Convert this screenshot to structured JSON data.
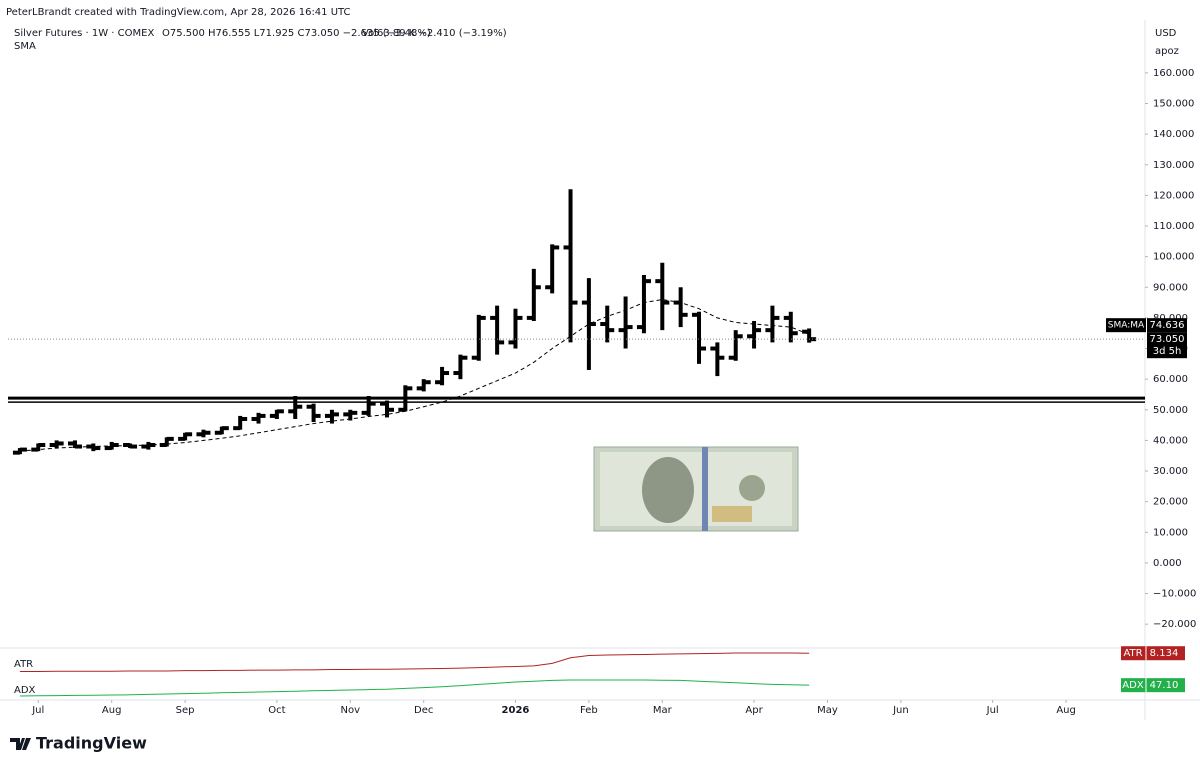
{
  "header": {
    "credit": "PeterLBrandt created with TradingView.com, Apr 28, 2026 16:41 UTC",
    "symbol": "Silver Futures · 1W · COMEX",
    "ohlc": "O75.500 H76.555 L71.925 C73.050 −2.635 (−3.48%)",
    "volume": "Vol63.89 K −2.410 (−3.19%)",
    "indicator": "SMA",
    "currency": "USD",
    "unit": "apoz"
  },
  "footer": {
    "brand": "TradingView"
  },
  "chart_data": [
    {
      "type": "ohlc",
      "open": [
        36,
        37,
        38.5,
        39,
        38,
        37.5,
        38.5,
        38,
        38.5,
        40.5,
        42,
        42.5,
        44,
        47,
        48,
        49.5,
        51,
        48,
        48.5,
        49,
        52,
        50,
        57,
        59,
        62,
        67,
        80,
        72,
        80,
        90,
        103,
        85,
        78,
        76,
        77,
        92,
        85,
        81,
        70,
        67,
        74,
        76,
        80,
        75.5
      ],
      "high": [
        37.5,
        39,
        40,
        40,
        39,
        39.5,
        39,
        39.5,
        41,
        42.5,
        43.5,
        44.5,
        48,
        49,
        50,
        54.5,
        52,
        50,
        50,
        54.5,
        53,
        58,
        60,
        64,
        68,
        81,
        84,
        83,
        96,
        104,
        122,
        93,
        84,
        87,
        94,
        98,
        90,
        82,
        72,
        76,
        79,
        84,
        82,
        76.555
      ],
      "low": [
        35.5,
        36.5,
        37.5,
        37.5,
        36.5,
        37,
        37.5,
        37,
        38,
        40,
        41,
        42,
        43.5,
        45.5,
        47,
        47,
        46,
        45.5,
        46.5,
        48,
        47.5,
        49.5,
        56,
        58,
        60,
        66,
        68,
        70,
        79,
        88,
        72,
        63,
        72,
        70,
        75,
        76,
        77,
        65,
        61,
        66,
        70,
        72,
        72,
        71.925
      ],
      "close": [
        37,
        38.5,
        39,
        38,
        37.5,
        38.5,
        38,
        38.5,
        40.5,
        42,
        42.5,
        44,
        47,
        48,
        49.5,
        51,
        48,
        48.5,
        49,
        52,
        50,
        57,
        59,
        62,
        67,
        80,
        72,
        80,
        90,
        103,
        85,
        78,
        76,
        77,
        92,
        85,
        81,
        70,
        67,
        74,
        76,
        80,
        75,
        73.05
      ],
      "close_label": "73.050",
      "countdown": "3d 5h",
      "color": "#000000",
      "sma": {
        "name": "SMA:MA",
        "color": "#000000",
        "last_value_label": "74.636",
        "values": [
          36.5,
          37,
          37.5,
          37.8,
          38,
          38.2,
          38.3,
          38.5,
          38.8,
          39.3,
          40,
          40.7,
          41.5,
          42.5,
          43.5,
          44.5,
          45.5,
          46.3,
          47,
          47.8,
          48.5,
          49.5,
          51,
          52.5,
          54.5,
          57,
          59.5,
          62,
          65.5,
          70,
          74,
          78,
          80.5,
          82.5,
          85,
          86,
          85,
          83,
          80,
          78.5,
          78,
          77.5,
          77,
          74.636
        ]
      },
      "hlines": [
        53.8,
        52.5
      ],
      "ylim": [
        -26.8,
        174
      ],
      "yticks": [
        {
          "value": 160,
          "label": "160.000"
        },
        {
          "value": 150,
          "label": "150.000"
        },
        {
          "value": 140,
          "label": "140.000"
        },
        {
          "value": 130,
          "label": "130.000"
        },
        {
          "value": 120,
          "label": "120.000"
        },
        {
          "value": 110,
          "label": "110.000"
        },
        {
          "value": 100,
          "label": "100.000"
        },
        {
          "value": 90,
          "label": "90.000"
        },
        {
          "value": 80,
          "label": "80.000"
        },
        {
          "value": 70,
          "label": "70.000"
        },
        {
          "value": 60,
          "label": "60.000"
        },
        {
          "value": 50,
          "label": "50.000"
        },
        {
          "value": 40,
          "label": "40.000"
        },
        {
          "value": 30,
          "label": "30.000"
        },
        {
          "value": 20,
          "label": "20.000"
        },
        {
          "value": 10,
          "label": "10.000"
        },
        {
          "value": 0,
          "label": "0.000"
        },
        {
          "value": -10,
          "label": "−10.000"
        },
        {
          "value": -20,
          "label": "−20.000"
        }
      ],
      "xlim": [
        -0.65,
        61.3
      ],
      "xticks": [
        {
          "value": 1,
          "label": "Jul"
        },
        {
          "value": 5,
          "label": "Aug"
        },
        {
          "value": 9,
          "label": "Sep"
        },
        {
          "value": 14,
          "label": "Oct"
        },
        {
          "value": 18,
          "label": "Nov"
        },
        {
          "value": 22,
          "label": "Dec"
        },
        {
          "value": 27,
          "label": "2026"
        },
        {
          "value": 31,
          "label": "Feb"
        },
        {
          "value": 35,
          "label": "Mar"
        },
        {
          "value": 40,
          "label": "Apr"
        },
        {
          "value": 44,
          "label": "May"
        },
        {
          "value": 48,
          "label": "Jun"
        },
        {
          "value": 53,
          "label": "Jul"
        },
        {
          "value": 57,
          "label": "Aug"
        }
      ]
    },
    {
      "type": "line",
      "name": "ATR",
      "color": "#b22222",
      "last_value_label": "8.134",
      "ylim": [
        0,
        10
      ],
      "values": [
        1.6,
        1.6,
        1.7,
        1.7,
        1.7,
        1.7,
        1.8,
        1.8,
        1.8,
        1.9,
        1.9,
        2,
        2,
        2.1,
        2.1,
        2.2,
        2.2,
        2.3,
        2.3,
        2.4,
        2.4,
        2.5,
        2.6,
        2.7,
        2.8,
        3,
        3.2,
        3.4,
        3.6,
        4.5,
        6.5,
        7.3,
        7.5,
        7.6,
        7.7,
        7.8,
        7.9,
        8,
        8.1,
        8.2,
        8.2,
        8.2,
        8.2,
        8.134
      ]
    },
    {
      "type": "line",
      "name": "ADX",
      "color": "#22b04b",
      "last_value_label": "47.10",
      "ylim": [
        10,
        70
      ],
      "values": [
        20,
        20.5,
        21,
        21.5,
        22,
        22.5,
        23,
        24,
        25,
        26,
        27,
        28,
        29,
        30,
        31,
        32,
        33,
        34,
        35,
        36,
        37,
        39,
        41,
        43,
        46,
        49,
        52,
        55,
        57,
        59,
        60,
        60,
        60,
        60,
        60,
        59.5,
        59,
        57,
        55,
        53,
        51,
        49,
        48,
        47.1
      ]
    }
  ]
}
